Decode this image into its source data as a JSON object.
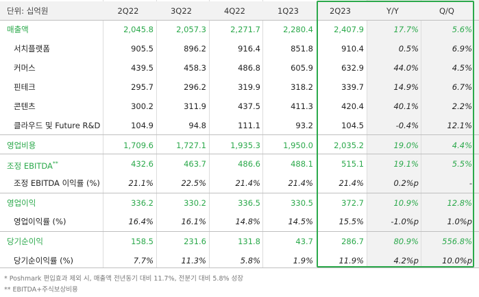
{
  "header": {
    "unit": "단위: 십억원",
    "cols": [
      "2Q22",
      "3Q22",
      "4Q22",
      "1Q23",
      "2Q23",
      "Y/Y",
      "Q/Q"
    ]
  },
  "rows": [
    {
      "label": "매출액",
      "kind": "main",
      "vals": [
        "2,045.8",
        "2,057.3",
        "2,271.7",
        "2,280.4",
        "2,407.9",
        "17.7%",
        "5.6%"
      ]
    },
    {
      "label": "서치플랫폼",
      "kind": "sub",
      "vals": [
        "905.5",
        "896.2",
        "916.4",
        "851.8",
        "910.4",
        "0.5%",
        "6.9%"
      ]
    },
    {
      "label": "커머스",
      "kind": "sub",
      "vals": [
        "439.5",
        "458.3",
        "486.8",
        "605.9",
        "632.9",
        "44.0%",
        "4.5%"
      ]
    },
    {
      "label": "핀테크",
      "kind": "sub",
      "vals": [
        "295.7",
        "296.2",
        "319.9",
        "318.2",
        "339.7",
        "14.9%",
        "6.7%"
      ]
    },
    {
      "label": "콘텐츠",
      "kind": "sub",
      "vals": [
        "300.2",
        "311.9",
        "437.5",
        "411.3",
        "420.4",
        "40.1%",
        "2.2%"
      ]
    },
    {
      "label": "클라우드 및 Future R&D",
      "kind": "sub",
      "vals": [
        "104.9",
        "94.8",
        "111.1",
        "93.2",
        "104.5",
        "-0.4%",
        "12.1%"
      ]
    },
    {
      "label": "영업비용",
      "kind": "main",
      "vals": [
        "1,709.6",
        "1,727.1",
        "1,935.3",
        "1,950.0",
        "2,035.2",
        "19.0%",
        "4.4%"
      ]
    },
    {
      "label": "조정 EBITDA",
      "sup": "**",
      "kind": "main",
      "vals": [
        "432.6",
        "463.7",
        "486.6",
        "488.1",
        "515.1",
        "19.1%",
        "5.5%"
      ]
    },
    {
      "label": "조정 EBITDA 이익률 (%)",
      "kind": "ratio",
      "vals": [
        "21.1%",
        "22.5%",
        "21.4%",
        "21.4%",
        "21.4%",
        "0.2%p",
        "-"
      ]
    },
    {
      "label": "영업이익",
      "kind": "main",
      "vals": [
        "336.2",
        "330.2",
        "336.5",
        "330.5",
        "372.7",
        "10.9%",
        "12.8%"
      ]
    },
    {
      "label": "영업이익률 (%)",
      "kind": "ratio",
      "vals": [
        "16.4%",
        "16.1%",
        "14.8%",
        "14.5%",
        "15.5%",
        "-1.0%p",
        "1.0%p"
      ]
    },
    {
      "label": "당기순이익",
      "kind": "main",
      "vals": [
        "158.5",
        "231.6",
        "131.8",
        "43.7",
        "286.7",
        "80.9%",
        "556.8%"
      ]
    },
    {
      "label": "당기순이익률 (%)",
      "kind": "ratio",
      "vals": [
        "7.7%",
        "11.3%",
        "5.8%",
        "1.9%",
        "11.9%",
        "4.2%p",
        "10.0%p"
      ]
    }
  ],
  "footnotes": [
    "* Poshmark 편입효과 제외 시, 매출액 전년동기 대비 11.7%, 전분기 대비 5.8% 성장",
    "** EBITDA+주식보상비용"
  ],
  "colors": {
    "accent": "#2aa84a",
    "shade": "#f2f2f2"
  }
}
